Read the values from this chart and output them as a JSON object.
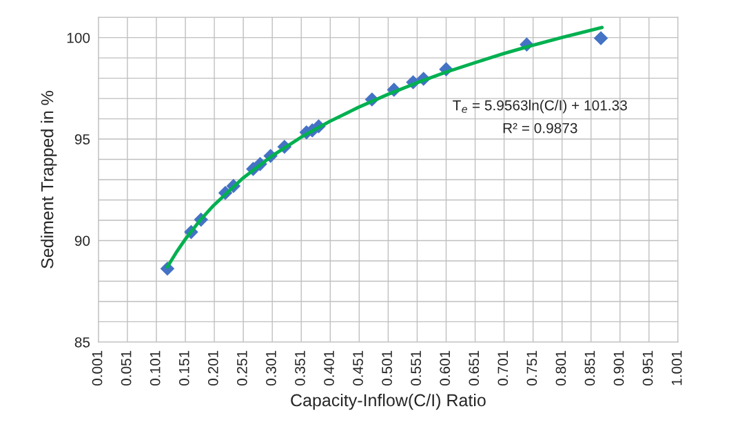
{
  "chart_data": {
    "type": "scatter",
    "xlabel": "Capacity-Inflow(C/I) Ratio",
    "ylabel": "Sediment Trapped in %",
    "xlim": [
      0.001,
      1.001
    ],
    "xticks": [
      0.001,
      0.051,
      0.101,
      0.151,
      0.201,
      0.251,
      0.301,
      0.351,
      0.401,
      0.451,
      0.501,
      0.551,
      0.601,
      0.651,
      0.701,
      0.751,
      0.801,
      0.851,
      0.901,
      0.951,
      1.001
    ],
    "ylim": [
      85,
      101
    ],
    "yticks": [
      85,
      90,
      95,
      100
    ],
    "grid": true,
    "legend": false,
    "series": [
      {
        "marker": "diamond",
        "color": "#4472c4",
        "x": [
          0.12,
          0.161,
          0.178,
          0.22,
          0.234,
          0.268,
          0.28,
          0.298,
          0.322,
          0.36,
          0.37,
          0.381,
          0.473,
          0.511,
          0.544,
          0.562,
          0.601,
          0.74,
          0.868
        ],
        "values": [
          88.62,
          90.42,
          91.03,
          92.35,
          92.69,
          93.53,
          93.77,
          94.17,
          94.62,
          95.33,
          95.43,
          95.63,
          96.95,
          97.43,
          97.8,
          97.97,
          98.44,
          99.66,
          99.97
        ]
      },
      {
        "type": "line",
        "color": "#00b050",
        "x": [
          0.12,
          0.135,
          0.15,
          0.175,
          0.2,
          0.25,
          0.3,
          0.35,
          0.4,
          0.45,
          0.5,
          0.55,
          0.6,
          0.65,
          0.7,
          0.75,
          0.8,
          0.87
        ],
        "values": [
          88.7,
          89.4,
          90.03,
          90.95,
          91.74,
          93.07,
          94.16,
          95.08,
          95.87,
          96.57,
          97.2,
          97.77,
          98.29,
          98.76,
          99.21,
          99.62,
          100.0,
          100.5
        ]
      }
    ],
    "annotations": [
      "T$_{e}$ = 5.9563ln(C/I) + 101.33",
      "R² = 0.9873"
    ]
  }
}
